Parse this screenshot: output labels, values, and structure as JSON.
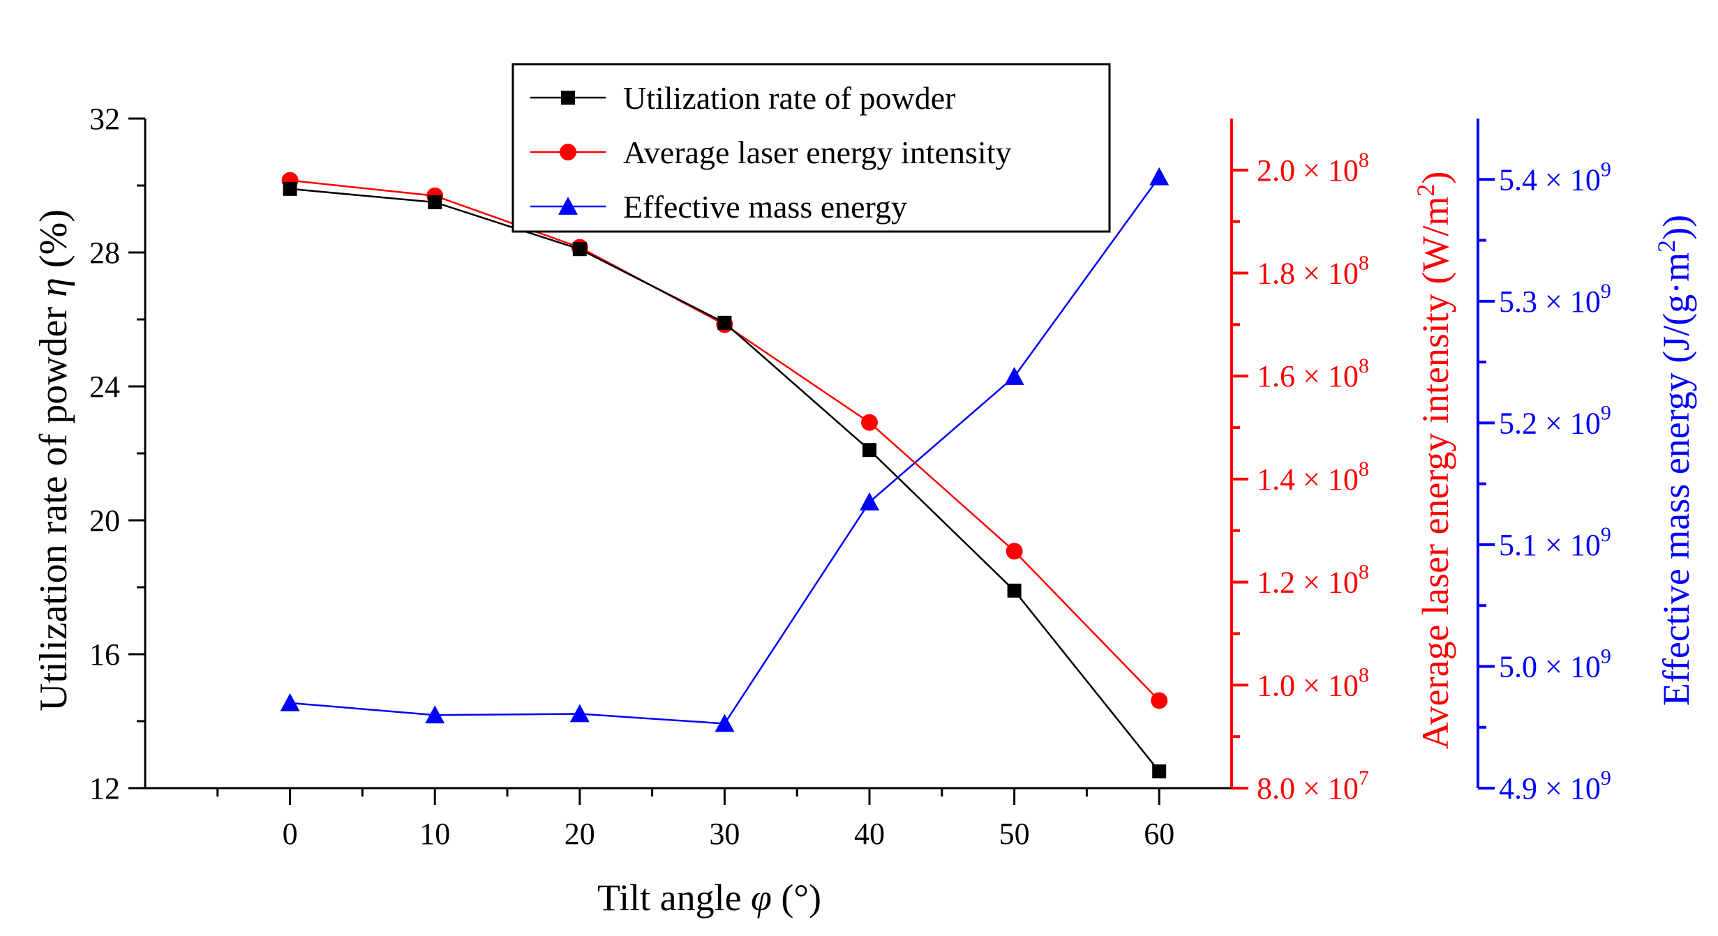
{
  "chart_data": {
    "type": "line",
    "x": [
      0,
      10,
      20,
      30,
      40,
      50,
      60
    ],
    "xlabel_main": "Tilt angle ",
    "xlabel_symbol": "φ",
    "xlabel_unit": " (°)",
    "xlim": [
      -10,
      65
    ],
    "xticks": [
      "0",
      "10",
      "20",
      "30",
      "40",
      "50",
      "60"
    ],
    "left_axis": {
      "label_main": "Utilization rate of powder ",
      "label_symbol": "η",
      "label_unit": " (%)",
      "ylim": [
        12,
        32
      ],
      "ticks": [
        "12",
        "16",
        "20",
        "24",
        "28",
        "32"
      ],
      "tick_values": [
        12,
        16,
        20,
        24,
        28,
        32
      ],
      "color": "#000000"
    },
    "right_axis_1": {
      "label_main": "Average laser energy intensity (W/m",
      "label_sup": "2",
      "label_end": ")",
      "ylim": [
        80000000,
        210000000
      ],
      "tick_values": [
        80000000,
        100000000,
        120000000,
        140000000,
        160000000,
        180000000,
        200000000
      ],
      "tick_mantissas": [
        "8.0",
        "1.0",
        "1.2",
        "1.4",
        "1.6",
        "1.8",
        "2.0"
      ],
      "tick_exponents": [
        "7",
        "8",
        "8",
        "8",
        "8",
        "8",
        "8"
      ],
      "times": "×",
      "base": "10",
      "color": "#ff0000"
    },
    "right_axis_2": {
      "label_main": "Effective mass energy (J/(g·m",
      "label_sup": "2",
      "label_end": "))",
      "ylim": [
        4900000000,
        5450000000
      ],
      "tick_values": [
        4900000000,
        5000000000,
        5100000000,
        5200000000,
        5300000000,
        5400000000
      ],
      "tick_mantissas": [
        "4.9",
        "5.0",
        "5.1",
        "5.2",
        "5.3",
        "5.4"
      ],
      "tick_exponents": [
        "9",
        "9",
        "9",
        "9",
        "9",
        "9"
      ],
      "times": "×",
      "base": "10",
      "color": "#0000ff"
    },
    "series": [
      {
        "name": "Utilization rate of powder",
        "axis": "left",
        "marker": "square",
        "color": "#000000",
        "values": [
          29.9,
          29.5,
          28.1,
          25.9,
          22.1,
          17.9,
          12.5
        ]
      },
      {
        "name": "Average laser energy intensity",
        "axis": "right1",
        "marker": "circle",
        "color": "#ff0000",
        "values": [
          198000000,
          195000000,
          185000000,
          170000000,
          151000000,
          126000000,
          97000000
        ]
      },
      {
        "name": "Effective mass energy",
        "axis": "right2",
        "marker": "triangle",
        "color": "#0000ff",
        "values": [
          4970000000,
          4960000000,
          4961000000,
          4953000000,
          5135000000,
          5238000000,
          5402000000
        ]
      }
    ],
    "legend_position": "top-center"
  }
}
